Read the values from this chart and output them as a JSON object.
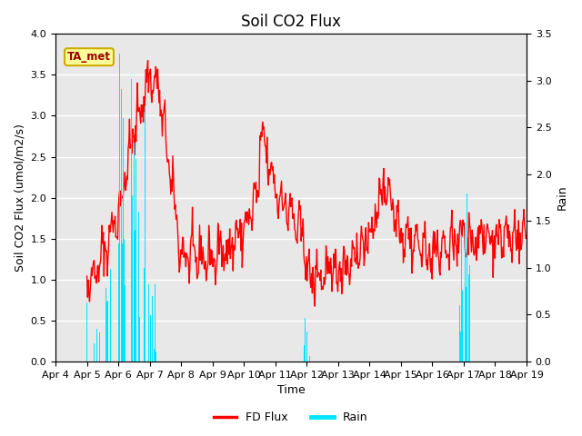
{
  "title": "Soil CO2 Flux",
  "xlabel": "Time",
  "ylabel_left": "Soil CO2 Flux (umol/m2/s)",
  "ylabel_right": "Rain",
  "ylim_left": [
    0,
    4.0
  ],
  "ylim_right": [
    0,
    3.5
  ],
  "yticks_left": [
    0.0,
    0.5,
    1.0,
    1.5,
    2.0,
    2.5,
    3.0,
    3.5,
    4.0
  ],
  "yticks_right": [
    0.0,
    0.5,
    1.0,
    1.5,
    2.0,
    2.5,
    3.0,
    3.5
  ],
  "xtick_labels": [
    "Apr 4",
    "Apr 5",
    "Apr 6",
    "Apr 7",
    "Apr 8",
    "Apr 9",
    "Apr 10",
    "Apr 11",
    "Apr 12",
    "Apr 13",
    "Apr 14",
    "Apr 15",
    "Apr 16",
    "Apr 17",
    "Apr 18",
    "Apr 19"
  ],
  "flux_color": "#ff0000",
  "rain_color": "#00e5ff",
  "background_color": "#e8e8e8",
  "legend_box_facecolor": "#ffff99",
  "legend_box_edgecolor": "#ccaa00",
  "legend_box_text": "TA_met",
  "legend_box_textcolor": "#990000",
  "title_fontsize": 12,
  "label_fontsize": 9,
  "tick_fontsize": 8,
  "n_days": 15,
  "pts_per_day": 48
}
